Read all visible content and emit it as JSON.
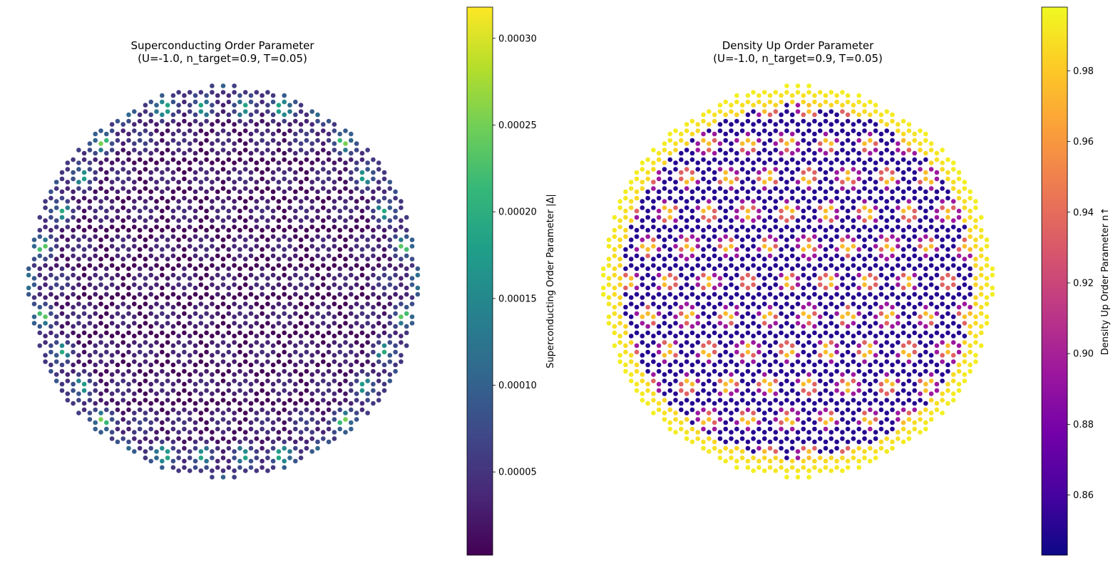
{
  "chart_data": [
    {
      "type": "scatter",
      "title": "Superconducting Order Parameter",
      "subtitle": "(U=-1.0, n_target=0.9, T=0.05)",
      "colorbar": {
        "label": "Superconducting Order Parameter |Δ|",
        "colormap": "viridis",
        "range": [
          2e-06,
          0.000318
        ],
        "ticks": [
          5e-05,
          0.0001,
          0.00015,
          0.0002,
          0.00025,
          0.0003
        ],
        "tick_labels": [
          "0.00005",
          "0.00010",
          "0.00015",
          "0.00020",
          "0.00025",
          "0.00030"
        ]
      },
      "lattice": "honeycomb-moire disk",
      "value_profile": {
        "interior_value": 4e-05,
        "interior_min": 4e-06,
        "edge_value": 0.00012,
        "edge_hotspot_max": 0.00031
      },
      "grid": false,
      "axes_visible": false
    },
    {
      "type": "scatter",
      "title": "Density Up Order Parameter",
      "subtitle": "(U=-1.0, n_target=0.9, T=0.05)",
      "colorbar": {
        "label": "Density Up Order Parameter n↑",
        "colormap": "plasma",
        "range": [
          0.843,
          0.998
        ],
        "ticks": [
          0.86,
          0.88,
          0.9,
          0.92,
          0.94,
          0.96,
          0.98
        ],
        "tick_labels": [
          "0.86",
          "0.88",
          "0.90",
          "0.92",
          "0.94",
          "0.96",
          "0.98"
        ]
      },
      "lattice": "honeycomb-moire disk",
      "value_profile": {
        "interior_low": 0.85,
        "interior_mid": 0.895,
        "interior_high": 0.935,
        "interior_peak": 0.975,
        "edge_value": 0.995
      },
      "grid": false,
      "axes_visible": false
    }
  ]
}
